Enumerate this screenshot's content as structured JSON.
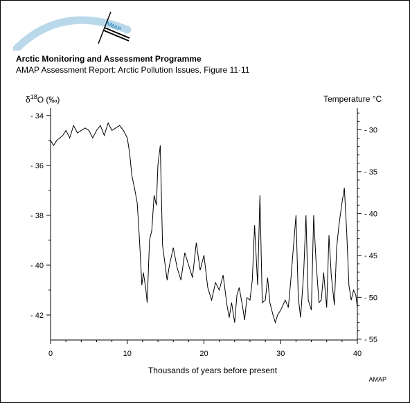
{
  "header": {
    "logo_text": "AMAP",
    "title": "Arctic Monitoring and Assessment Programme",
    "subtitle": "AMAP Assessment Report: Arctic Pollution Issues, Figure 11·11"
  },
  "footer": {
    "credit": "AMAP"
  },
  "colors": {
    "logo_arc": "#b9d9ea",
    "logo_mark": "#3b8fc0",
    "line": "#000000"
  },
  "chart_data": {
    "type": "line",
    "title": "",
    "xlabel": "Thousands of years before present",
    "ylabel_left": "δ18O (‰)",
    "ylabel_right": "Temperature °C",
    "xlim": [
      0,
      40
    ],
    "ylim_left": [
      -43,
      -33.7
    ],
    "ylim_right": [
      -55.1,
      -27.4
    ],
    "xticks": [
      0,
      10,
      20,
      30,
      40
    ],
    "xtick_labels": [
      "0",
      "10",
      "20",
      "30",
      "40"
    ],
    "yticks_left": [
      -34,
      -36,
      -38,
      -40,
      -42
    ],
    "ytick_labels_left": [
      "- 34",
      "- 36",
      "- 38",
      "- 40",
      "- 42"
    ],
    "yticks_right": [
      -30,
      -35,
      -40,
      -45,
      -50,
      -55
    ],
    "ytick_labels_right": [
      "- 30",
      "- 35",
      "- 40",
      "- 45",
      "- 50",
      "- 55"
    ],
    "grid": false,
    "series": [
      {
        "x": [
          0,
          0.4,
          0.8,
          1.2,
          1.6,
          2.0,
          2.5,
          3.0,
          3.5,
          4.0,
          4.5,
          5.0,
          5.5,
          6.0,
          6.5,
          7.0,
          7.5,
          8.0,
          8.5,
          9.0,
          9.5,
          10.0,
          10.3,
          10.6,
          11.0,
          11.3,
          11.5,
          11.7,
          11.9,
          12.1,
          12.4,
          12.6,
          12.9,
          13.2,
          13.5,
          13.8,
          14.0,
          14.3,
          14.6,
          14.9,
          15.2,
          15.5,
          16.0,
          16.5,
          17.0,
          17.5,
          18.0,
          18.5,
          19.0,
          19.5,
          20.0,
          20.5,
          21.0,
          21.5,
          22.0,
          22.5,
          23.0,
          23.3,
          23.6,
          24.0,
          24.3,
          24.6,
          25.0,
          25.3,
          25.6,
          26.0,
          26.3,
          26.6,
          27.0,
          27.3,
          27.6,
          28.0,
          28.3,
          28.6,
          29.0,
          29.3,
          29.6,
          30.0,
          30.3,
          30.6,
          31.0,
          31.3,
          31.6,
          32.0,
          32.3,
          32.6,
          33.0,
          33.3,
          33.6,
          34.0,
          34.3,
          34.6,
          35.0,
          35.3,
          35.6,
          36.0,
          36.3,
          36.6,
          37.0,
          37.3,
          37.6,
          38.0,
          38.3,
          38.6,
          38.9,
          39.2,
          39.5,
          39.8,
          40.0
        ],
        "values": [
          -35.0,
          -35.2,
          -35.0,
          -34.9,
          -34.8,
          -34.6,
          -34.9,
          -34.4,
          -34.7,
          -34.6,
          -34.5,
          -34.6,
          -34.9,
          -34.6,
          -34.4,
          -34.8,
          -34.3,
          -34.6,
          -34.5,
          -34.4,
          -34.6,
          -34.9,
          -35.5,
          -36.4,
          -37.0,
          -37.5,
          -38.5,
          -39.6,
          -40.8,
          -40.3,
          -40.9,
          -41.5,
          -39.0,
          -38.6,
          -37.2,
          -37.6,
          -36.0,
          -35.2,
          -39.2,
          -39.9,
          -40.6,
          -40.0,
          -39.3,
          -40.1,
          -40.6,
          -39.5,
          -40.0,
          -40.5,
          -39.1,
          -40.2,
          -39.6,
          -40.9,
          -41.4,
          -40.7,
          -41.0,
          -40.4,
          -41.6,
          -42.1,
          -41.5,
          -42.3,
          -41.2,
          -40.9,
          -41.6,
          -42.2,
          -41.3,
          -41.4,
          -40.6,
          -38.4,
          -40.8,
          -37.2,
          -41.5,
          -41.4,
          -40.5,
          -41.5,
          -42.0,
          -42.3,
          -42.0,
          -41.8,
          -41.6,
          -41.4,
          -41.7,
          -40.7,
          -39.5,
          -38.0,
          -41.3,
          -42.1,
          -40.3,
          -38.0,
          -41.4,
          -41.8,
          -38.0,
          -39.8,
          -41.5,
          -41.4,
          -40.3,
          -41.7,
          -38.8,
          -40.4,
          -41.6,
          -39.3,
          -38.4,
          -37.5,
          -36.9,
          -38.6,
          -40.8,
          -41.4,
          -41.0,
          -41.2,
          -41.7
        ]
      }
    ]
  }
}
